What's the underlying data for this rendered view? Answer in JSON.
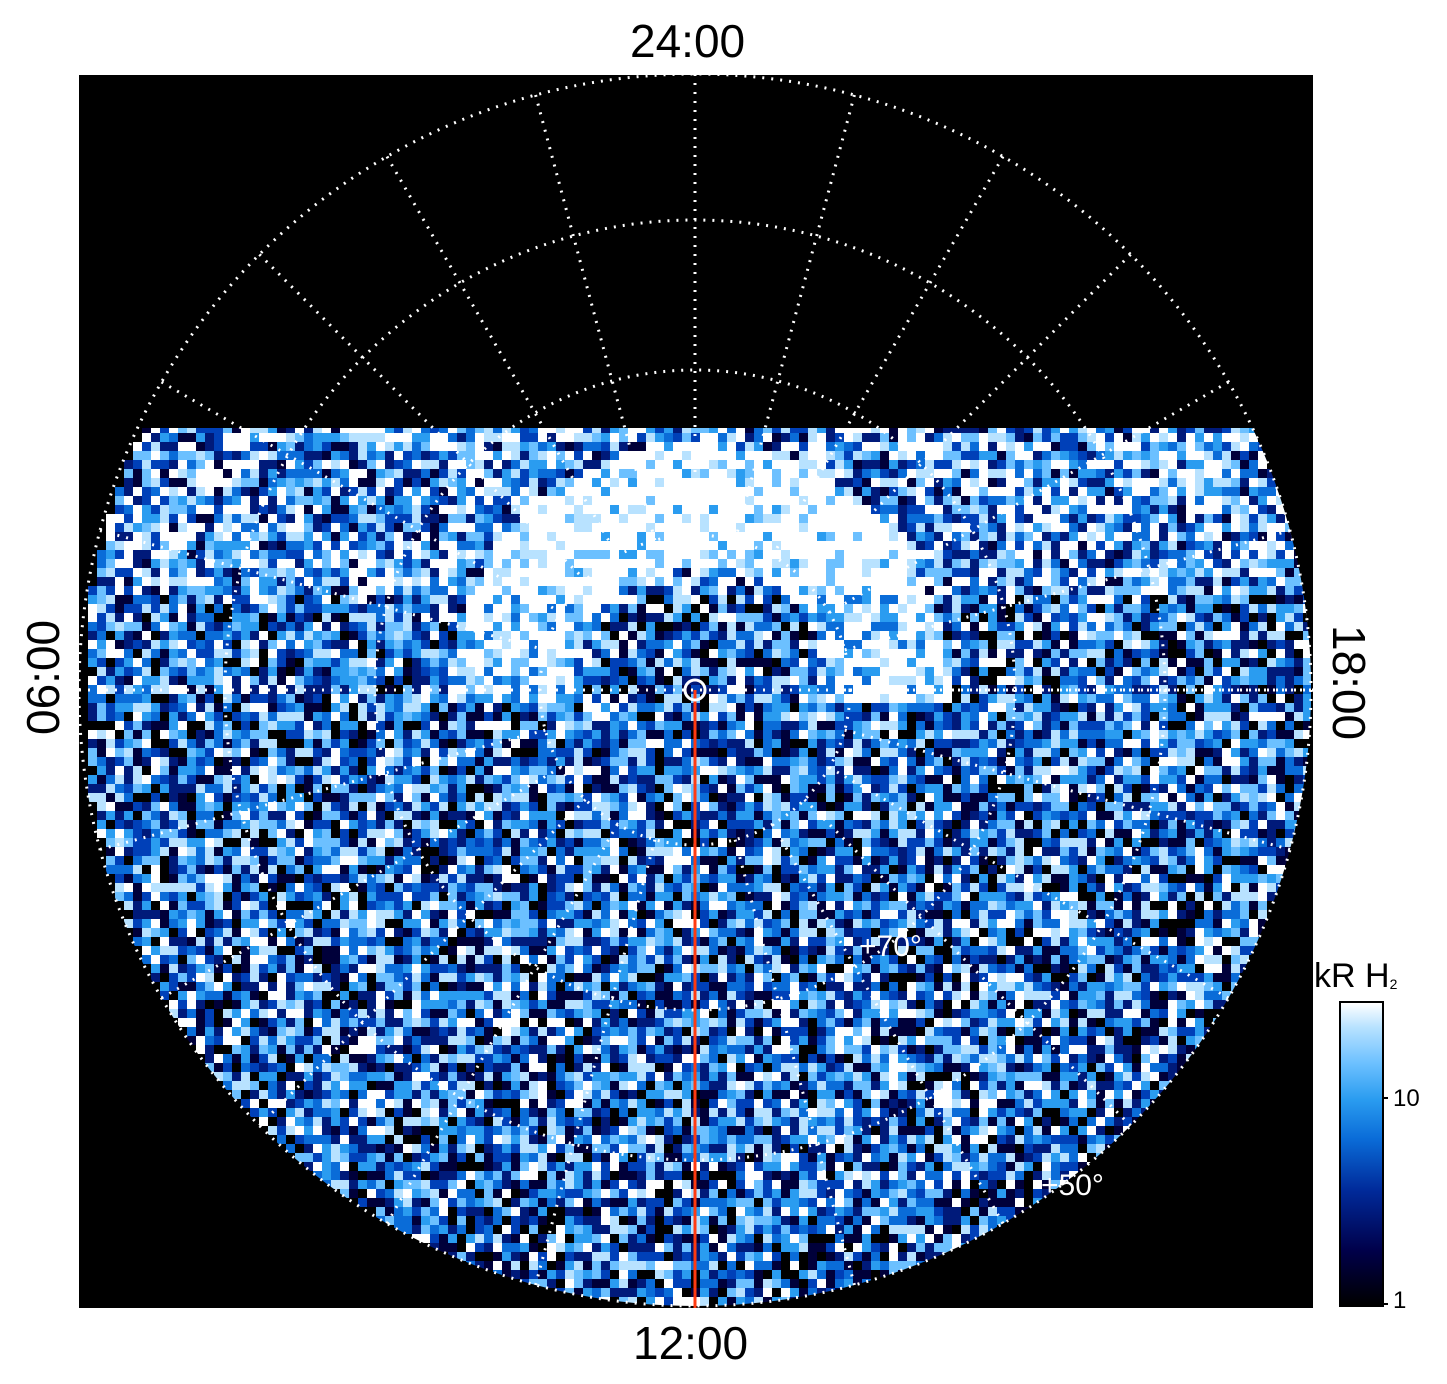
{
  "labels": {
    "top": "24:00",
    "bottom": "12:00",
    "left": "06:00",
    "right": "18:00"
  },
  "grid_labels": {
    "inner": "+70°",
    "outer": "+50°"
  },
  "colorbar": {
    "title": "kR H",
    "title_sub": "2",
    "ticks": [
      "10",
      "1"
    ],
    "colors": {
      "low": "#000000",
      "mid": "#0a6cd8",
      "high": "#ffffff"
    }
  },
  "colors": {
    "background": "#000000",
    "grid": "#ffffff",
    "meridian": "#ff3a10"
  }
}
